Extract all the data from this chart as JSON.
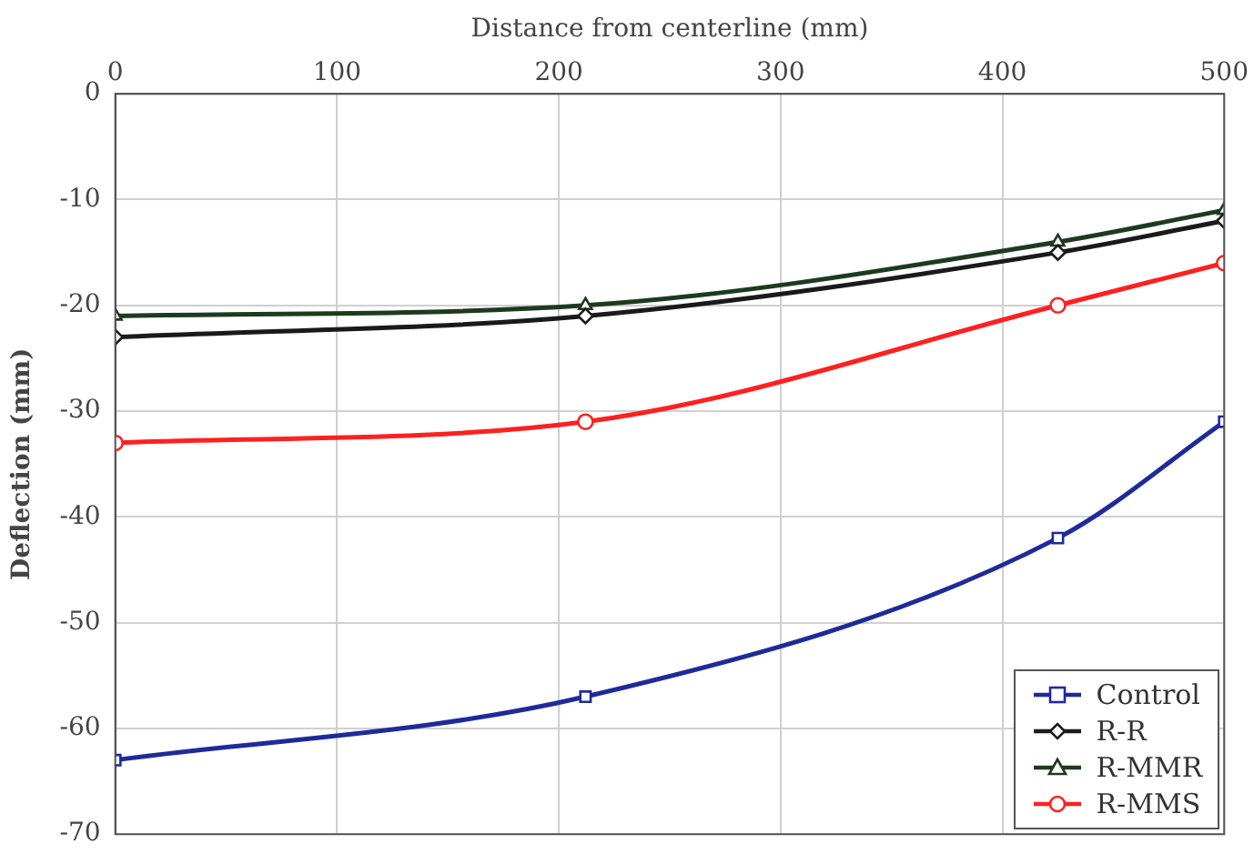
{
  "chart_data": {
    "type": "line",
    "xlabel": "Distance from centerline (mm)",
    "ylabel": "Deflection (mm)",
    "x": [
      0,
      212,
      425,
      500
    ],
    "series": [
      {
        "name": "Control",
        "color": "#1f2a9a",
        "marker": "square",
        "values": [
          -63,
          -57,
          -42,
          -31
        ]
      },
      {
        "name": "R-R",
        "color": "#1a1a1a",
        "marker": "diamond",
        "values": [
          -23,
          -21,
          -15,
          -12
        ]
      },
      {
        "name": "R-MMR",
        "color": "#1e3a1e",
        "marker": "triangle",
        "values": [
          -21,
          -20,
          -14,
          -11
        ]
      },
      {
        "name": "R-MMS",
        "color": "#ff2020",
        "marker": "circle",
        "values": [
          -33,
          -31,
          -20,
          -16
        ]
      }
    ],
    "xlim": [
      0,
      500
    ],
    "xticks": [
      0,
      100,
      200,
      300,
      400,
      500
    ],
    "ylim": [
      -70,
      0
    ],
    "yticks": [
      -70,
      -60,
      -50,
      -40,
      -30,
      -20,
      -10,
      0
    ],
    "grid": true,
    "legend": "bottom right"
  }
}
